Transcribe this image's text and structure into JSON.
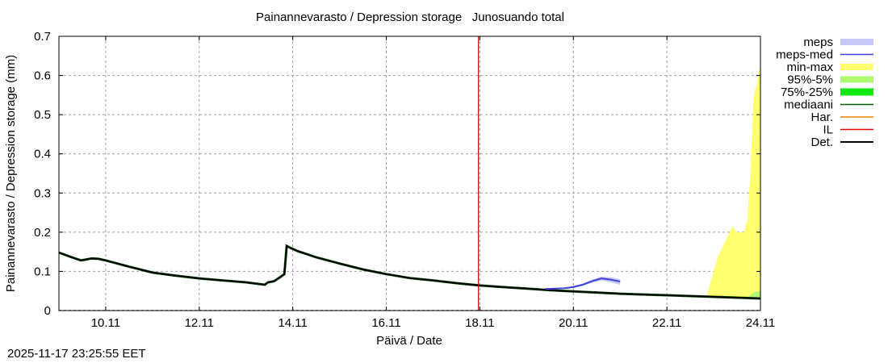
{
  "chart_data": {
    "type": "line",
    "title": "Painannevarasto / Depression storage   Junosuando total",
    "xlabel": "Päivä / Date",
    "ylabel": "Painannevarasto / Depression storage (mm)",
    "ylim": [
      0,
      0.7
    ],
    "yticks": [
      0,
      0.1,
      0.2,
      0.3,
      0.4,
      0.5,
      0.6,
      0.7
    ],
    "ytick_labels": [
      "0",
      "0.1",
      "0.2",
      "0.3",
      "0.4",
      "0.5",
      "0.6",
      "0.7"
    ],
    "xlim_day": [
      9.0,
      24.0
    ],
    "xticks_day": [
      10,
      12,
      14,
      16,
      18,
      20,
      22,
      24
    ],
    "xtick_labels": [
      "10.11",
      "12.11",
      "14.11",
      "16.11",
      "18.11",
      "20.11",
      "22.11",
      "24.11"
    ],
    "grid": true,
    "legend_position": "right-outside",
    "legend": [
      {
        "label": "meps",
        "color": "#c8c8f8",
        "style": "band"
      },
      {
        "label": "meps-med",
        "color": "#4040e0",
        "style": "line"
      },
      {
        "label": "min-max",
        "color": "#ffff70",
        "style": "band"
      },
      {
        "label": "95%-5%",
        "color": "#b0f870",
        "style": "band"
      },
      {
        "label": "75%-25%",
        "color": "#10e810",
        "style": "band"
      },
      {
        "label": "mediaani",
        "color": "#006400",
        "style": "line"
      },
      {
        "label": "Har.",
        "color": "#ff8000",
        "style": "line"
      },
      {
        "label": "IL",
        "color": "#e00000",
        "style": "line"
      },
      {
        "label": "Det.",
        "color": "#000000",
        "style": "line"
      }
    ],
    "vertical_marker": {
      "label": "IL",
      "day": 17.97,
      "color": "#d00000"
    },
    "series": [
      {
        "name": "Det.",
        "color": "#000000",
        "x_day": [
          9.0,
          9.25,
          9.47,
          9.7,
          9.85,
          10.0,
          10.5,
          11.0,
          11.5,
          12.0,
          12.5,
          13.0,
          13.4,
          13.47,
          13.6,
          13.75,
          13.82,
          13.87,
          13.95,
          14.1,
          14.5,
          15.0,
          15.5,
          16.0,
          16.5,
          17.0,
          17.5,
          18.0,
          18.5,
          19.0,
          19.5,
          20.0,
          20.5,
          21.0,
          21.5,
          22.0,
          22.5,
          23.0,
          23.5,
          24.0
        ],
        "values": [
          0.148,
          0.137,
          0.128,
          0.133,
          0.132,
          0.128,
          0.112,
          0.097,
          0.089,
          0.082,
          0.077,
          0.072,
          0.066,
          0.072,
          0.075,
          0.087,
          0.093,
          0.165,
          0.16,
          0.152,
          0.136,
          0.12,
          0.105,
          0.093,
          0.083,
          0.077,
          0.07,
          0.064,
          0.06,
          0.056,
          0.052,
          0.049,
          0.046,
          0.043,
          0.041,
          0.039,
          0.037,
          0.035,
          0.033,
          0.031
        ]
      },
      {
        "name": "meps-med",
        "color": "#4040e0",
        "x_day": [
          19.4,
          19.8,
          20.0,
          20.2,
          20.4,
          20.6,
          20.8,
          21.0
        ],
        "values": [
          0.055,
          0.057,
          0.06,
          0.066,
          0.075,
          0.082,
          0.079,
          0.074
        ]
      },
      {
        "name": "meps",
        "color": "#c8c8f8",
        "x_day": [
          19.4,
          19.8,
          20.0,
          20.2,
          20.4,
          20.6,
          20.8,
          21.0
        ],
        "upper": [
          0.057,
          0.059,
          0.063,
          0.069,
          0.079,
          0.087,
          0.085,
          0.08
        ],
        "lower": [
          0.053,
          0.055,
          0.058,
          0.063,
          0.071,
          0.077,
          0.072,
          0.066
        ]
      },
      {
        "name": "min-max",
        "color": "#ffff70",
        "x_day": [
          22.85,
          22.95,
          23.1,
          23.3,
          23.4,
          23.5,
          23.65,
          23.72,
          23.78,
          23.85,
          23.92,
          24.0
        ],
        "upper": [
          0.036,
          0.08,
          0.14,
          0.19,
          0.215,
          0.2,
          0.2,
          0.23,
          0.34,
          0.54,
          0.58,
          0.63
        ],
        "lower": [
          0.035,
          0.035,
          0.034,
          0.034,
          0.033,
          0.033,
          0.032,
          0.032,
          0.032,
          0.031,
          0.031,
          0.031
        ]
      },
      {
        "name": "95%-5%",
        "color": "#b0f870",
        "x_day": [
          23.75,
          23.85,
          23.95,
          24.0
        ],
        "upper": [
          0.036,
          0.046,
          0.049,
          0.049
        ],
        "lower": [
          0.032,
          0.032,
          0.031,
          0.031
        ]
      }
    ]
  },
  "footer": {
    "timestamp": "2025-11-17 23:25:55 EET"
  }
}
